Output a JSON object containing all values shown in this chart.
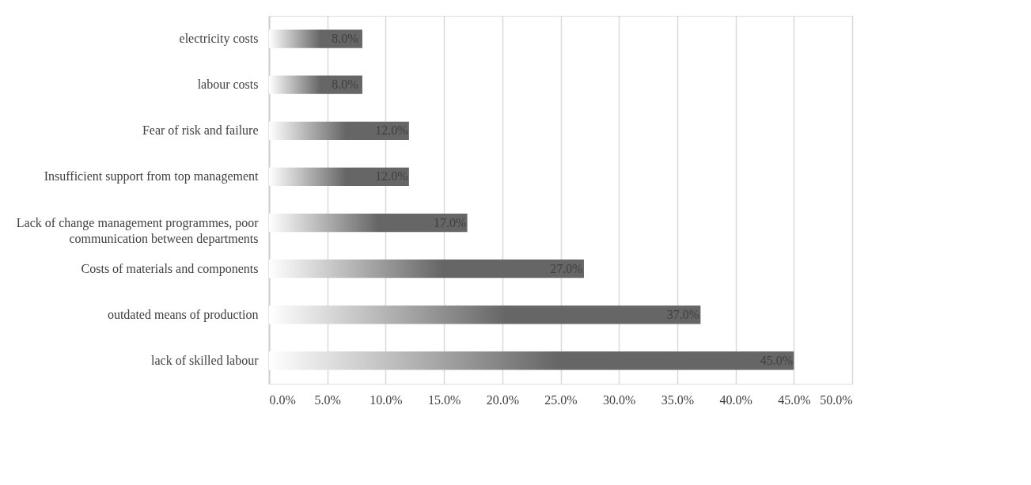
{
  "chart_data": {
    "type": "bar",
    "orientation": "horizontal",
    "categories": [
      "electricity costs",
      "labour costs",
      "Fear of risk and failure",
      "Insufficient support from top management",
      "Lack of change management programmes, poor communication between departments",
      "Costs of materials and components",
      "outdated means of production",
      "lack of skilled labour"
    ],
    "series": [
      {
        "color": "#666666",
        "values": [
          8.0,
          8.0,
          12.0,
          12.0,
          17.0,
          27.0,
          37.0,
          45.0
        ],
        "value_labels": [
          "8.0%",
          "8.0%",
          "12.0%",
          "12.0%",
          "17.0%",
          "27.0%",
          "37.0%",
          "45.0%"
        ]
      }
    ],
    "xlim": [
      0,
      50
    ],
    "xticks": [
      {
        "value": 0,
        "label": "0.0%"
      },
      {
        "value": 5,
        "label": "5.0%"
      },
      {
        "value": 10,
        "label": "10.0%"
      },
      {
        "value": 15,
        "label": "15.0%"
      },
      {
        "value": 20,
        "label": "20.0%"
      },
      {
        "value": 25,
        "label": "25.0%"
      },
      {
        "value": 30,
        "label": "30.0%"
      },
      {
        "value": 35,
        "label": "35.0%"
      },
      {
        "value": 40,
        "label": "40.0%"
      },
      {
        "value": 45,
        "label": "45.0%"
      },
      {
        "value": 50,
        "label": "50.0%"
      }
    ],
    "grid": "x"
  }
}
